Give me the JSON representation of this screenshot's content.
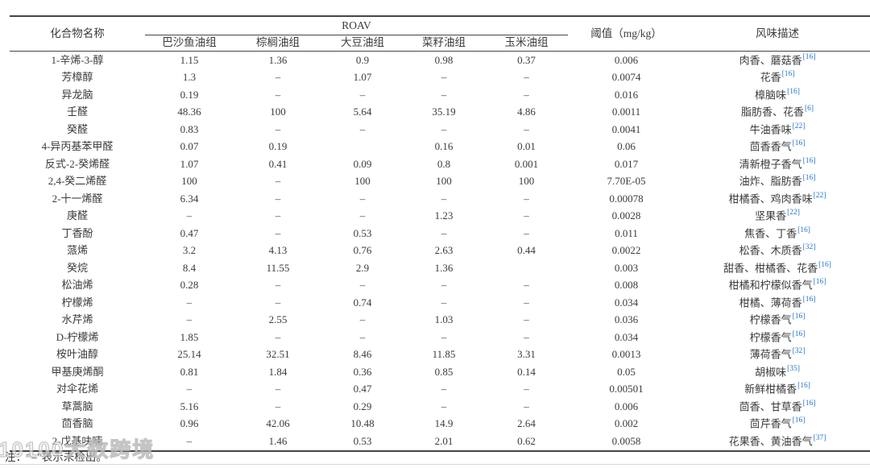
{
  "page": {
    "note": "注：“–”表示未检出。",
    "watermark": "10100大数跨境"
  },
  "colors": {
    "text": "#3B3B3B",
    "rule": "#454545",
    "reference_blue": "#2277C8"
  },
  "table": {
    "headers": {
      "compound": "化合物名称",
      "roav": "ROAV",
      "oil_groups": [
        "巴沙鱼油组",
        "棕榈油组",
        "大豆油组",
        "菜籽油组",
        "玉米油组"
      ],
      "threshold": "阈值（mg/kg）",
      "flavor": "风味描述"
    },
    "not_detected_symbol": "–",
    "rows": [
      {
        "name": "1-辛烯-3-醇",
        "values": [
          "1.15",
          "1.36",
          "0.9",
          "0.98",
          "0.37"
        ],
        "threshold": "0.006",
        "flavor": "肉香、蘑菇香",
        "ref": "[16]"
      },
      {
        "name": "芳樟醇",
        "values": [
          "1.3",
          "–",
          "1.07",
          "–",
          "–"
        ],
        "threshold": "0.0074",
        "flavor": "花香",
        "ref": "[16]"
      },
      {
        "name": "异龙脑",
        "values": [
          "0.19",
          "–",
          "–",
          "–",
          "–"
        ],
        "threshold": "0.016",
        "flavor": "樟脑味",
        "ref": "[16]"
      },
      {
        "name": "壬醛",
        "values": [
          "48.36",
          "100",
          "5.64",
          "35.19",
          "4.86"
        ],
        "threshold": "0.0011",
        "flavor": "脂肪香、花香",
        "ref": "[6]"
      },
      {
        "name": "癸醛",
        "values": [
          "0.83",
          "–",
          "–",
          "–",
          "–"
        ],
        "threshold": "0.0041",
        "flavor": "牛油香味",
        "ref": "[22]"
      },
      {
        "name": "4-异丙基苯甲醛",
        "values": [
          "0.07",
          "0.19",
          "",
          "0.16",
          "0.01"
        ],
        "threshold": "0.06",
        "flavor": "茴香香气",
        "ref": "[16]"
      },
      {
        "name": "反式-2-癸烯醛",
        "values": [
          "1.07",
          "0.41",
          "0.09",
          "0.8",
          "0.001"
        ],
        "threshold": "0.017",
        "flavor": "清新橙子香气",
        "ref": "[16]"
      },
      {
        "name": "2,4-癸二烯醛",
        "values": [
          "100",
          "–",
          "100",
          "100",
          "100"
        ],
        "threshold": "7.70E-05",
        "flavor": "油炸、脂肪香",
        "ref": "[16]"
      },
      {
        "name": "2-十一烯醛",
        "values": [
          "6.34",
          "–",
          "–",
          "–",
          "–"
        ],
        "threshold": "0.00078",
        "flavor": "柑橘香、鸡肉香味",
        "ref": "[22]"
      },
      {
        "name": "庚醛",
        "values": [
          "–",
          "–",
          "–",
          "1.23",
          "–"
        ],
        "threshold": "0.0028",
        "flavor": "坚果香",
        "ref": "[22]"
      },
      {
        "name": "丁香酚",
        "values": [
          "0.47",
          "–",
          "0.53",
          "–",
          "–"
        ],
        "threshold": "0.011",
        "flavor": "焦香、丁香",
        "ref": "[16]"
      },
      {
        "name": "蒎烯",
        "values": [
          "3.2",
          "4.13",
          "0.76",
          "2.63",
          "0.44"
        ],
        "threshold": "0.0022",
        "flavor": "松香、木质香",
        "ref": "[32]"
      },
      {
        "name": "癸烷",
        "values": [
          "8.4",
          "11.55",
          "2.9",
          "1.36",
          ""
        ],
        "threshold": "0.003",
        "flavor": "甜香、柑橘香、花香",
        "ref": "[16]"
      },
      {
        "name": "松油烯",
        "values": [
          "0.28",
          "–",
          "–",
          "–",
          "–"
        ],
        "threshold": "0.008",
        "flavor": "柑橘和柠檬似香气",
        "ref": "[16]"
      },
      {
        "name": "柠檬烯",
        "values": [
          "–",
          "–",
          "0.74",
          "–",
          "–"
        ],
        "threshold": "0.034",
        "flavor": "柑橘、薄荷香",
        "ref": "[16]"
      },
      {
        "name": "水芹烯",
        "values": [
          "–",
          "2.55",
          "–",
          "1.03",
          "–"
        ],
        "threshold": "0.036",
        "flavor": "柠檬香气",
        "ref": "[16]"
      },
      {
        "name": "D-柠檬烯",
        "values": [
          "1.85",
          "–",
          "–",
          "–",
          "–"
        ],
        "threshold": "0.034",
        "flavor": "柠檬香气",
        "ref": "[16]"
      },
      {
        "name": "桉叶油醇",
        "values": [
          "25.14",
          "32.51",
          "8.46",
          "11.85",
          "3.31"
        ],
        "threshold": "0.0013",
        "flavor": "薄荷香气",
        "ref": "[32]"
      },
      {
        "name": "甲基庚烯酮",
        "values": [
          "0.81",
          "1.84",
          "0.36",
          "0.85",
          "0.14"
        ],
        "threshold": "0.05",
        "flavor": "胡椒味",
        "ref": "[35]"
      },
      {
        "name": "对伞花烯",
        "values": [
          "–",
          "–",
          "0.47",
          "–",
          "–"
        ],
        "threshold": "0.00501",
        "flavor": "新鲜柑橘香",
        "ref": "[16]"
      },
      {
        "name": "草蒿脑",
        "values": [
          "5.16",
          "–",
          "0.29",
          "–",
          "–"
        ],
        "threshold": "0.006",
        "flavor": "茴香、甘草香",
        "ref": "[16]"
      },
      {
        "name": "茴香脑",
        "values": [
          "0.96",
          "42.06",
          "10.48",
          "14.9",
          "2.64"
        ],
        "threshold": "0.002",
        "flavor": "茴芹香气",
        "ref": "[16]"
      },
      {
        "name": "2-戊基呋喃",
        "values": [
          "–",
          "1.46",
          "0.53",
          "2.01",
          "0.62"
        ],
        "threshold": "0.0058",
        "flavor": "花果香、黄油香气",
        "ref": "[37]"
      }
    ]
  }
}
